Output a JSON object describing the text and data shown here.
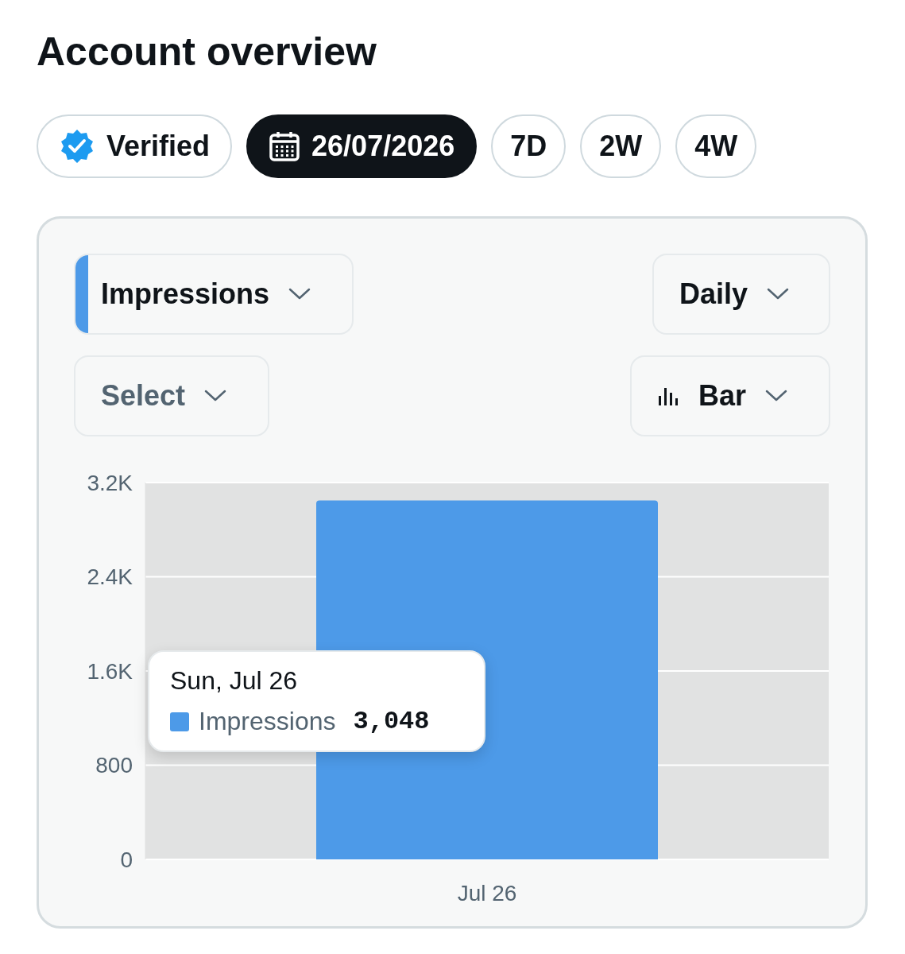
{
  "chart_data": {
    "type": "bar",
    "title": "Account overview",
    "annotations": [
      "Verified",
      "26/07/2026",
      "7D",
      "2W",
      "4W",
      "Daily",
      "Select",
      "Bar",
      "Sun, Jul 26"
    ],
    "categories": [
      "Jul 26"
    ],
    "series": [
      {
        "name": "Impressions",
        "color": "#4d9ae8",
        "values": [
          3048
        ],
        "value_labels": [
          "3,048"
        ]
      }
    ],
    "ylim": [
      0,
      3200
    ],
    "yticks": [
      0,
      800,
      {
        "value": 1600,
        "label": "1.6K"
      },
      {
        "value": 2400,
        "label": "2.4K"
      },
      {
        "value": 3200,
        "label": "3.2K"
      }
    ],
    "grid": "y",
    "legend": "left"
  }
}
